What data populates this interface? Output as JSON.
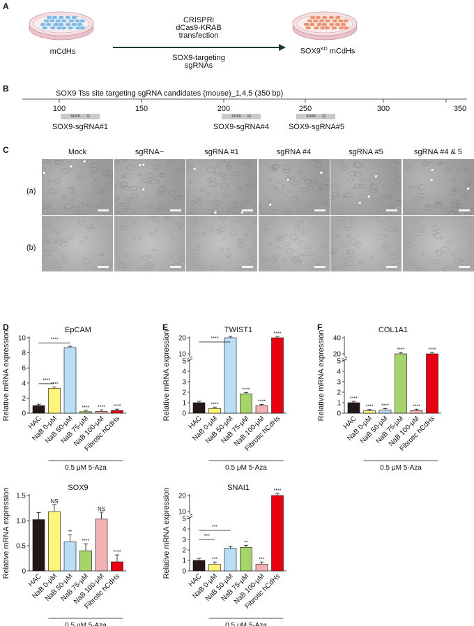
{
  "panel_a": {
    "letter": "A",
    "left_label": "mCdHs",
    "arrow_top": [
      "CRISPRi",
      "dCas9-KRAB",
      "transfection"
    ],
    "arrow_bottom": [
      "SOX9-targeting",
      "sgRNAs"
    ],
    "right_label_main": "SOX9",
    "right_label_sup": "KD",
    "right_label_tail": " mCdHs",
    "colors": {
      "left_cells": "#6fb7e6",
      "right_cells": "#ec8a62",
      "dish": "#f1d6dc"
    }
  },
  "panel_b": {
    "letter": "B",
    "title": "SOX9 Tss site targeting sgRNA candidates (mouse)_1,4,5 (350 bp)",
    "ticks": [
      "100",
      "150",
      "200",
      "250",
      "300",
      "350"
    ],
    "boxes": [
      {
        "text": "SOX9. . . .7)",
        "label": "SOX9-sgRNA#1"
      },
      {
        "text": "SOX9. . . .5)",
        "label": "SOX9-sgRNA#4"
      },
      {
        "text": "SOX9. . . .3)",
        "label": "SOX9-sgRNA#5"
      }
    ]
  },
  "panel_c": {
    "letter": "C",
    "columns": [
      "Mock",
      "sgRNA−",
      "sgRNA #1",
      "sgRNA #4",
      "sgRNA #5",
      "sgRNA #4 & 5"
    ],
    "rows": [
      "(a)",
      "(b)"
    ],
    "colors": {
      "row_a": "#a6a6a6",
      "row_b": "#b3b3b3"
    }
  },
  "bottom_label": "0.5 μM 5-Aza",
  "charts": {
    "D": {
      "letter": "D",
      "title": "EpCAM",
      "ylabel": "Relative mRNA expression",
      "categories": [
        "HAC",
        "NaB 0-μM",
        "NaB 50-μM",
        "NaB 75-μM",
        "NaB 100-μM",
        "Fibrotic hCdHs"
      ],
      "ticks": [
        "0",
        "2",
        "4",
        "6",
        "8",
        "10"
      ],
      "stars": [
        "",
        "****",
        "",
        "****",
        "****",
        "****"
      ],
      "bracket": "****",
      "bracket2": "****"
    },
    "E": {
      "letter": "E",
      "title": "TWIST1",
      "ylabel": "Relative mRNA expression",
      "categories": [
        "HAC",
        "NaB 0-μM",
        "NaB 50-μM",
        "NaB 75-μM",
        "NaB 100-μM",
        "Fibrotic hCdHs"
      ],
      "ticks": [
        "0",
        "1",
        "2",
        "3",
        "4",
        "5"
      ],
      "upper_ticks": [
        "20",
        "10"
      ],
      "stars": [
        "",
        "****",
        "",
        "****",
        "****",
        "****"
      ],
      "bracket": "****"
    },
    "F": {
      "letter": "F",
      "title": "COL1A1",
      "ylabel": "Relative mRNA expression",
      "categories": [
        "HAC",
        "NaB 0-μM",
        "NaB 50-μM",
        "NaB 75-μM",
        "NaB 100-μM",
        "Fibrotic hCdHs"
      ],
      "ticks": [
        "0",
        "1",
        "2",
        "3",
        "4",
        "5"
      ],
      "upper_ticks": [
        "40",
        "20"
      ],
      "stars": [
        "****",
        "****",
        "****",
        "****",
        "****",
        "****"
      ]
    },
    "G": {
      "title": "SOX9",
      "ylabel": "Relative mRNA expression",
      "categories": [
        "HAC",
        "NaB 0-μM",
        "NaB 50-μM",
        "NaB 75-μM",
        "NaB 100-μM",
        "Fibrotic hCdHs"
      ],
      "ticks": [
        "0",
        "0.5",
        "1.0",
        "1.5"
      ],
      "stars": [
        "",
        "NS",
        "**",
        "****",
        "NS",
        "****"
      ]
    },
    "H": {
      "title": "SNAI1",
      "ylabel": "Relative mRNA expression",
      "categories": [
        "HAC",
        "NaB 0-μM",
        "NaB 50-μM",
        "NaB 75-μM",
        "NaB 100-μM",
        "Fibrotic hCdHs"
      ],
      "ticks": [
        "0",
        "1",
        "2",
        "3",
        "4",
        "5"
      ],
      "upper_ticks": [
        "20",
        "10"
      ],
      "stars": [
        "",
        "***",
        "",
        "**",
        "***",
        "****"
      ],
      "bracket": "***",
      "bracket2": "***"
    }
  },
  "chart_data": [
    {
      "type": "bar",
      "title": "EpCAM",
      "ylabel": "Relative mRNA expression",
      "categories": [
        "HAC",
        "NaB 0-μM",
        "NaB 50-μM",
        "NaB 75-μM",
        "NaB 100-μM",
        "Fibrotic hCdHs"
      ],
      "values": [
        1.0,
        3.3,
        8.7,
        0.2,
        0.25,
        0.35
      ],
      "ylim": [
        0,
        10
      ],
      "colors": [
        "#231815",
        "#fff37a",
        "#b9def6",
        "#a6d36a",
        "#f3b2b2",
        "#e50012"
      ]
    },
    {
      "type": "bar",
      "title": "TWIST1",
      "ylabel": "Relative mRNA expression",
      "categories": [
        "HAC",
        "NaB 0-μM",
        "NaB 50-μM",
        "NaB 75-μM",
        "NaB 100-μM",
        "Fibrotic hCdHs"
      ],
      "values": [
        1.0,
        0.45,
        20,
        1.85,
        0.7,
        20
      ],
      "ylim": [
        0,
        20
      ],
      "colors": [
        "#231815",
        "#fff37a",
        "#b9def6",
        "#a6d36a",
        "#f3b2b2",
        "#e50012"
      ]
    },
    {
      "type": "bar",
      "title": "COL1A1",
      "ylabel": "Relative mRNA expression",
      "categories": [
        "HAC",
        "NaB 0-μM",
        "NaB 50-μM",
        "NaB 75-μM",
        "NaB 100-μM",
        "Fibrotic hCdHs"
      ],
      "values": [
        1.0,
        0.22,
        0.3,
        20,
        0.25,
        20
      ],
      "ylim": [
        0,
        40
      ],
      "colors": [
        "#231815",
        "#fff37a",
        "#b9def6",
        "#a6d36a",
        "#f3b2b2",
        "#e50012"
      ]
    },
    {
      "type": "bar",
      "title": "SOX9",
      "ylabel": "Relative mRNA expression",
      "categories": [
        "HAC",
        "NaB 0-μM",
        "NaB 50-μM",
        "NaB 75-μM",
        "NaB 100-μM",
        "Fibrotic hCdHs"
      ],
      "values": [
        1.02,
        1.18,
        0.58,
        0.4,
        1.03,
        0.18
      ],
      "ylim": [
        0,
        1.5
      ],
      "colors": [
        "#231815",
        "#fff37a",
        "#b9def6",
        "#a6d36a",
        "#f3b2b2",
        "#e50012"
      ]
    },
    {
      "type": "bar",
      "title": "SNAI1",
      "ylabel": "Relative mRNA expression",
      "categories": [
        "HAC",
        "NaB 0-μM",
        "NaB 50-μM",
        "NaB 75-μM",
        "NaB 100-μM",
        "Fibrotic hCdHs"
      ],
      "values": [
        1.0,
        0.65,
        2.15,
        2.25,
        0.65,
        20
      ],
      "ylim": [
        0,
        20
      ],
      "colors": [
        "#231815",
        "#fff37a",
        "#b9def6",
        "#a6d36a",
        "#f3b2b2",
        "#e50012"
      ]
    }
  ]
}
